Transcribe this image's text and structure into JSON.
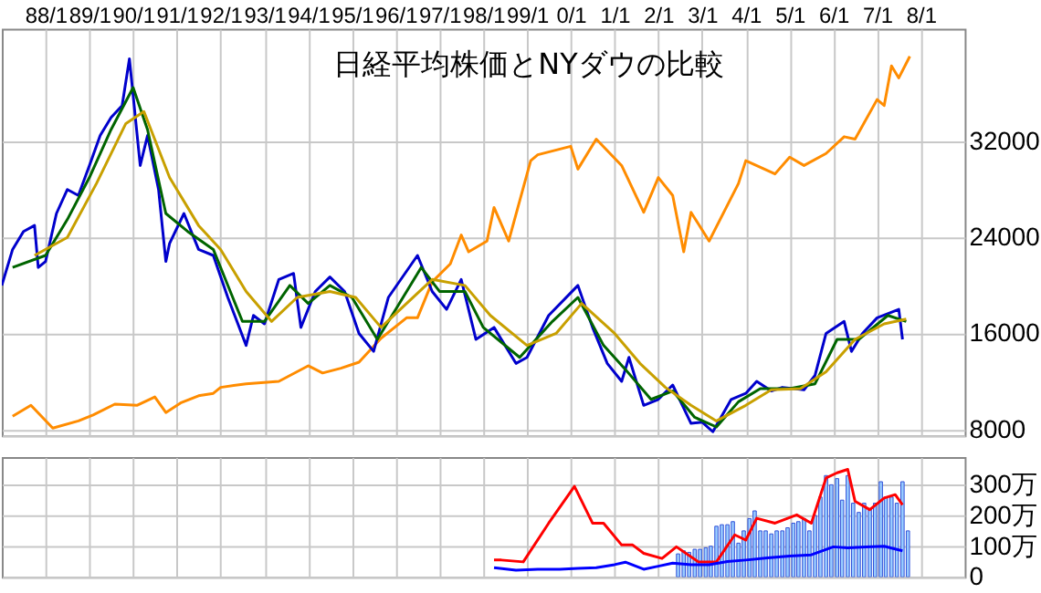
{
  "chart_data": [
    {
      "type": "line",
      "title": "日経平均株価とNYダウの比較",
      "xlim": [
        "1987-01",
        "2009-01"
      ],
      "ylim": [
        7500,
        41400
      ],
      "xticks": [
        {
          "value": "1988-01",
          "label": "88/1"
        },
        {
          "value": "1989-01",
          "label": "89/1"
        },
        {
          "value": "1990-01",
          "label": "90/1"
        },
        {
          "value": "1991-01",
          "label": "91/1"
        },
        {
          "value": "1992-01",
          "label": "92/1"
        },
        {
          "value": "1993-01",
          "label": "93/1"
        },
        {
          "value": "1994-01",
          "label": "94/1"
        },
        {
          "value": "1995-01",
          "label": "95/1"
        },
        {
          "value": "1996-01",
          "label": "96/1"
        },
        {
          "value": "1997-01",
          "label": "97/1"
        },
        {
          "value": "1998-01",
          "label": "98/1"
        },
        {
          "value": "1999-01",
          "label": "99/1"
        },
        {
          "value": "2000-01",
          "label": "0/1"
        },
        {
          "value": "2001-01",
          "label": "1/1"
        },
        {
          "value": "2002-01",
          "label": "2/1"
        },
        {
          "value": "2003-01",
          "label": "3/1"
        },
        {
          "value": "2004-01",
          "label": "4/1"
        },
        {
          "value": "2005-01",
          "label": "5/1"
        },
        {
          "value": "2006-01",
          "label": "6/1"
        },
        {
          "value": "2007-01",
          "label": "7/1"
        },
        {
          "value": "2008-01",
          "label": "8/1"
        }
      ],
      "yticks": [
        {
          "value": 7500,
          "label": null
        },
        8000,
        16000,
        24000,
        32000
      ],
      "grid": true,
      "series": [
        {
          "color": "#ff8c00",
          "x": [
            "1987-04",
            "1987-09",
            "1988-03",
            "1988-10",
            "1989-02",
            "1989-08",
            "1990-02",
            "1990-07",
            "1990-10",
            "1991-02",
            "1991-07",
            "1991-11",
            "1992-01",
            "1992-08",
            "1993-05",
            "1994-01",
            "1994-05",
            "1994-10",
            "1995-03",
            "1995-09",
            "1996-04",
            "1996-07",
            "1996-11",
            "1997-04",
            "1997-07",
            "1997-09",
            "1998-02",
            "1998-04",
            "1998-08",
            "1999-02",
            "1999-04",
            "2000-01",
            "2000-03",
            "2000-08",
            "2001-03",
            "2001-09",
            "2002-01",
            "2002-05",
            "2002-08",
            "2002-10",
            "2003-03",
            "2003-11",
            "2004-01",
            "2004-09",
            "2005-01",
            "2005-05",
            "2005-11",
            "2006-04",
            "2006-07",
            "2007-01",
            "2007-03",
            "2007-05",
            "2007-07",
            "2007-10"
          ],
          "values": [
            9100,
            10000,
            8100,
            8700,
            9200,
            10100,
            10000,
            10700,
            9400,
            10200,
            10800,
            11000,
            11500,
            11800,
            12000,
            13300,
            12700,
            13100,
            13600,
            15600,
            17300,
            17300,
            20300,
            21800,
            24200,
            22800,
            23700,
            26500,
            23700,
            30400,
            30900,
            31600,
            29700,
            32200,
            30000,
            26100,
            29000,
            27500,
            22800,
            26100,
            23700,
            28500,
            30400,
            29300,
            30700,
            30000,
            31000,
            32400,
            32200,
            35500,
            35000,
            38300,
            37300,
            39100
          ]
        },
        {
          "color": "#0000cc",
          "x": [
            "1987-01",
            "1987-04",
            "1987-07",
            "1987-10",
            "1987-11",
            "1988-01",
            "1988-04",
            "1988-07",
            "1988-10",
            "1989-01",
            "1989-04",
            "1989-07",
            "1989-10",
            "1989-12",
            "1990-03",
            "1990-05",
            "1990-08",
            "1990-10",
            "1990-11",
            "1991-03",
            "1991-07",
            "1991-11",
            "1992-03",
            "1992-08",
            "1992-10",
            "1993-01",
            "1993-05",
            "1993-09",
            "1993-11",
            "1994-03",
            "1994-07",
            "1994-11",
            "1995-03",
            "1995-07",
            "1995-11",
            "1996-07",
            "1996-11",
            "1997-03",
            "1997-07",
            "1997-11",
            "1998-04",
            "1998-10",
            "1999-01",
            "1999-07",
            "2000-03",
            "2000-07",
            "2000-11",
            "2001-03",
            "2001-05",
            "2001-09",
            "2002-01",
            "2002-05",
            "2002-10",
            "2003-01",
            "2003-04",
            "2003-09",
            "2004-01",
            "2004-04",
            "2004-08",
            "2004-11",
            "2005-05",
            "2005-08",
            "2005-11",
            "2006-04",
            "2006-06",
            "2006-09",
            "2007-01",
            "2007-07",
            "2007-08"
          ],
          "values": [
            20000,
            23000,
            24500,
            25000,
            21500,
            22000,
            26000,
            28000,
            27500,
            30000,
            32500,
            34000,
            35000,
            38900,
            30000,
            32500,
            28000,
            22000,
            23500,
            26000,
            23000,
            22500,
            19000,
            15000,
            17500,
            16800,
            20500,
            21000,
            16500,
            19500,
            20700,
            19500,
            16000,
            14500,
            19000,
            22500,
            19500,
            18000,
            20500,
            15500,
            16500,
            13500,
            14000,
            17500,
            20000,
            16500,
            13500,
            12000,
            14000,
            10000,
            10500,
            11700,
            8500,
            8600,
            7800,
            10500,
            11000,
            12000,
            11200,
            11500,
            11300,
            12500,
            16000,
            17000,
            14500,
            16000,
            17300,
            18000,
            15500
          ]
        },
        {
          "color": "#006400",
          "x": [
            "1987-04",
            "1988-01",
            "1988-07",
            "1989-01",
            "1989-07",
            "1990-01",
            "1990-05",
            "1990-10",
            "1991-04",
            "1991-11",
            "1992-07",
            "1993-01",
            "1993-08",
            "1994-01",
            "1994-07",
            "1995-01",
            "1995-08",
            "1996-01",
            "1996-08",
            "1997-01",
            "1997-08",
            "1998-01",
            "1998-11",
            "1999-08",
            "2000-03",
            "2000-10",
            "2001-04",
            "2001-11",
            "2002-05",
            "2002-11",
            "2003-05",
            "2003-11",
            "2004-05",
            "2005-01",
            "2005-08",
            "2006-02",
            "2006-08",
            "2007-04",
            "2007-09"
          ],
          "values": [
            21500,
            22500,
            25500,
            29000,
            33000,
            36500,
            33000,
            26000,
            24500,
            23000,
            17000,
            17000,
            20000,
            18500,
            20000,
            19000,
            15500,
            18000,
            21500,
            19500,
            19500,
            16500,
            14000,
            17000,
            19000,
            15000,
            13000,
            10500,
            11200,
            9000,
            8200,
            10300,
            11400,
            11400,
            11800,
            15500,
            15500,
            17500,
            17000
          ]
        },
        {
          "color": "#c8a000",
          "x": [
            "1987-10",
            "1988-07",
            "1989-03",
            "1989-11",
            "1990-04",
            "1990-11",
            "1991-07",
            "1992-01",
            "1992-08",
            "1993-03",
            "1993-10",
            "1994-07",
            "1995-02",
            "1995-09",
            "1996-04",
            "1996-11",
            "1997-08",
            "1998-03",
            "1999-01",
            "1999-09",
            "2000-04",
            "2001-01",
            "2001-08",
            "2002-03",
            "2002-10",
            "2003-05",
            "2004-01",
            "2004-08",
            "2005-04",
            "2005-11",
            "2006-07",
            "2007-03",
            "2007-09"
          ],
          "values": [
            22500,
            24000,
            28500,
            33500,
            34500,
            29000,
            25000,
            23000,
            19500,
            17000,
            19000,
            19500,
            19000,
            16500,
            18500,
            20500,
            20000,
            17500,
            15000,
            16000,
            18500,
            16000,
            13500,
            11500,
            10000,
            8700,
            10000,
            11300,
            11400,
            12800,
            15500,
            16800,
            17200
          ]
        }
      ]
    },
    {
      "type": "bar",
      "xlim": [
        "1987-01",
        "2009-01"
      ],
      "ylim": [
        0,
        390
      ],
      "yticks": [
        0,
        {
          "value": 100,
          "label": "100万"
        },
        {
          "value": 200,
          "label": "200万"
        },
        {
          "value": 300,
          "label": "300万"
        }
      ],
      "xticks": [
        "1988-01",
        "1989-01",
        "1990-01",
        "1991-01",
        "1992-01",
        "1993-01",
        "1994-01",
        "1995-01",
        "1996-01",
        "1997-01",
        "1998-01",
        "1999-01",
        "2000-01",
        "2001-01",
        "2002-01",
        "2003-01",
        "2004-01",
        "2005-01",
        "2006-01",
        "2007-01",
        "2008-01"
      ],
      "tick_labels": "y",
      "grid": true,
      "series": [
        {
          "color": "#99ccff",
          "x": [
            "2002-06-15",
            "2002-08-01",
            "2002-09-15",
            "2002-11-01",
            "2002-12-15",
            "2003-02-01",
            "2003-03-15",
            "2003-05-01",
            "2003-06-15",
            "2003-08-01",
            "2003-09-15",
            "2003-11-01",
            "2003-12-15",
            "2004-02-01",
            "2004-03-15",
            "2004-05-01",
            "2004-06-15",
            "2004-08-01",
            "2004-09-15",
            "2004-11-01",
            "2004-12-15",
            "2005-02-01",
            "2005-03-15",
            "2005-05-01",
            "2005-06-15",
            "2005-08-01",
            "2005-09-15",
            "2005-11-01",
            "2005-12-15",
            "2006-02-01",
            "2006-03-15",
            "2006-05-01",
            "2006-06-15",
            "2006-08-01",
            "2006-09-15",
            "2006-11-01",
            "2006-12-15",
            "2007-02-01",
            "2007-03-15",
            "2007-05-01",
            "2007-06-15",
            "2007-08-01",
            "2007-09-15"
          ],
          "values": [
            75,
            85,
            80,
            90,
            90,
            95,
            100,
            165,
            170,
            170,
            180,
            110,
            150,
            190,
            215,
            150,
            150,
            140,
            150,
            150,
            160,
            175,
            180,
            190,
            150,
            200,
            260,
            330,
            300,
            320,
            250,
            330,
            240,
            210,
            240,
            220,
            240,
            310,
            260,
            260,
            240,
            310,
            150
          ]
        },
        {
          "type": "line",
          "color": "#ff0000",
          "x": [
            "1998-04",
            "1998-06",
            "1998-12",
            "1999-07",
            "2000-02",
            "2000-07",
            "2000-10",
            "2001-03",
            "2001-06",
            "2001-09",
            "2002-02",
            "2002-06",
            "2002-12",
            "2003-05",
            "2003-10",
            "2004-01",
            "2004-04",
            "2004-09",
            "2005-03",
            "2005-07",
            "2005-11",
            "2006-02",
            "2006-05",
            "2006-07",
            "2006-11",
            "2007-03",
            "2007-06",
            "2007-08"
          ],
          "values": [
            55,
            55,
            49,
            175,
            295,
            175,
            175,
            104,
            104,
            77,
            60,
            98,
            49,
            49,
            137,
            120,
            191,
            175,
            202,
            175,
            322,
            339,
            350,
            246,
            219,
            257,
            268,
            235
          ]
        },
        {
          "type": "line",
          "color": "#0000ff",
          "x": [
            "1998-04",
            "1998-10",
            "1999-04",
            "1999-10",
            "2000-03",
            "2000-08",
            "2001-01",
            "2001-04",
            "2001-09",
            "2002-01",
            "2002-05",
            "2002-10",
            "2003-03",
            "2003-08",
            "2004-01",
            "2004-07",
            "2005-01",
            "2005-07",
            "2006-01",
            "2006-05",
            "2006-10",
            "2007-03",
            "2007-08"
          ],
          "values": [
            30,
            22,
            25,
            25,
            28,
            30,
            40,
            48,
            25,
            35,
            45,
            40,
            40,
            50,
            55,
            62,
            68,
            72,
            98,
            95,
            98,
            100,
            85
          ]
        }
      ]
    }
  ]
}
